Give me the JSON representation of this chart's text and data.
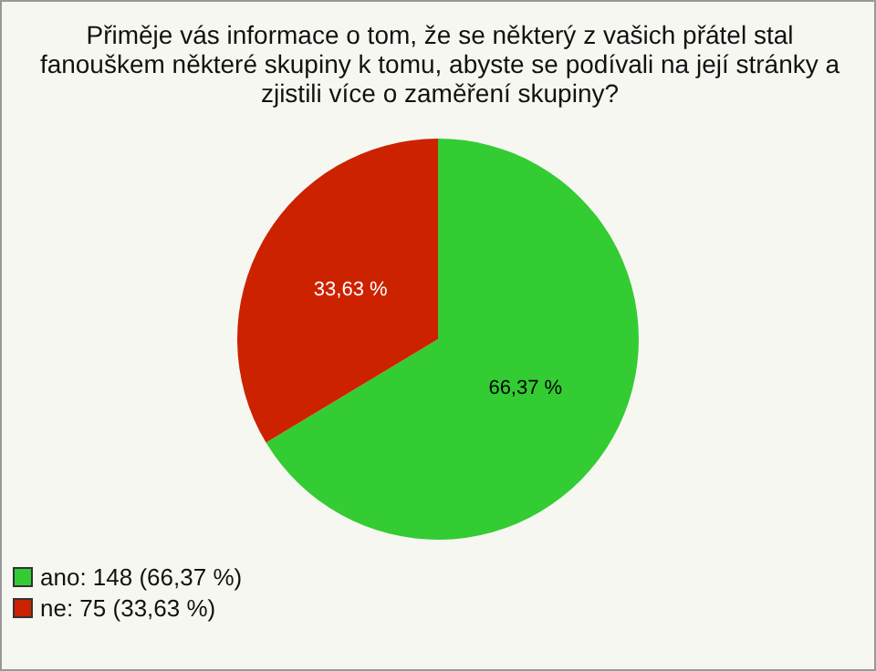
{
  "chart_data": {
    "type": "pie",
    "title": "Přiměje vás informace o tom, že se některý z vašich přátel stal fanouškem některé skupiny k tomu, abyste se podívali na její stránky a zjistili více o zaměření skupiny?",
    "categories": [
      "ano: 148 (66,37 %)",
      "ne: 75 (33,63 %)"
    ],
    "values": [
      66.37,
      33.63
    ],
    "colors": [
      "#33cc33",
      "#cc2200"
    ],
    "value_labels": [
      "66,37 %",
      "33,63 %"
    ],
    "legend": "bottom left"
  }
}
